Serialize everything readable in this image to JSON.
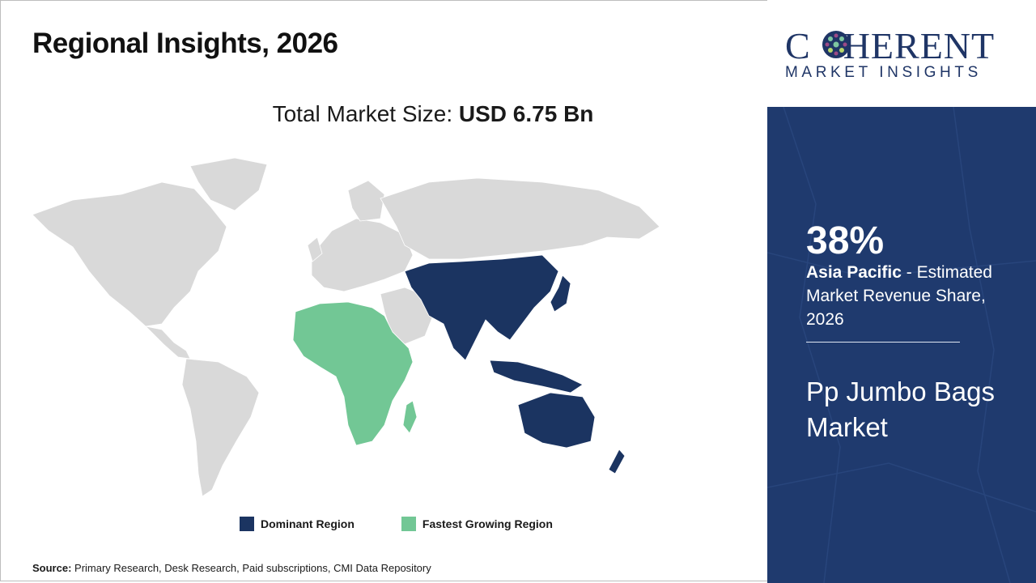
{
  "title": "Regional Insights, 2026",
  "market_size": {
    "label": "Total Market Size:",
    "value": "USD 6.75 Bn"
  },
  "legend": [
    {
      "label": "Dominant Region",
      "color": "#1b3461"
    },
    {
      "label": "Fastest Growing Region",
      "color": "#72c795"
    }
  ],
  "map": {
    "base_color": "#d9d9d9",
    "dominant_region": "Asia Pacific",
    "fastest_growing_region": "Africa"
  },
  "source": {
    "label": "Source:",
    "text": "Primary Research, Desk Research, Paid subscriptions, CMI Data Repository"
  },
  "logo": {
    "word_left": "C",
    "word_right": "HERENT",
    "sub": "MARKET INSIGHTS"
  },
  "panel": {
    "percent": "38%",
    "region": "Asia Pacific",
    "description": " - Estimated Market Revenue Share, 2026",
    "market_name": "Pp Jumbo Bags Market"
  }
}
